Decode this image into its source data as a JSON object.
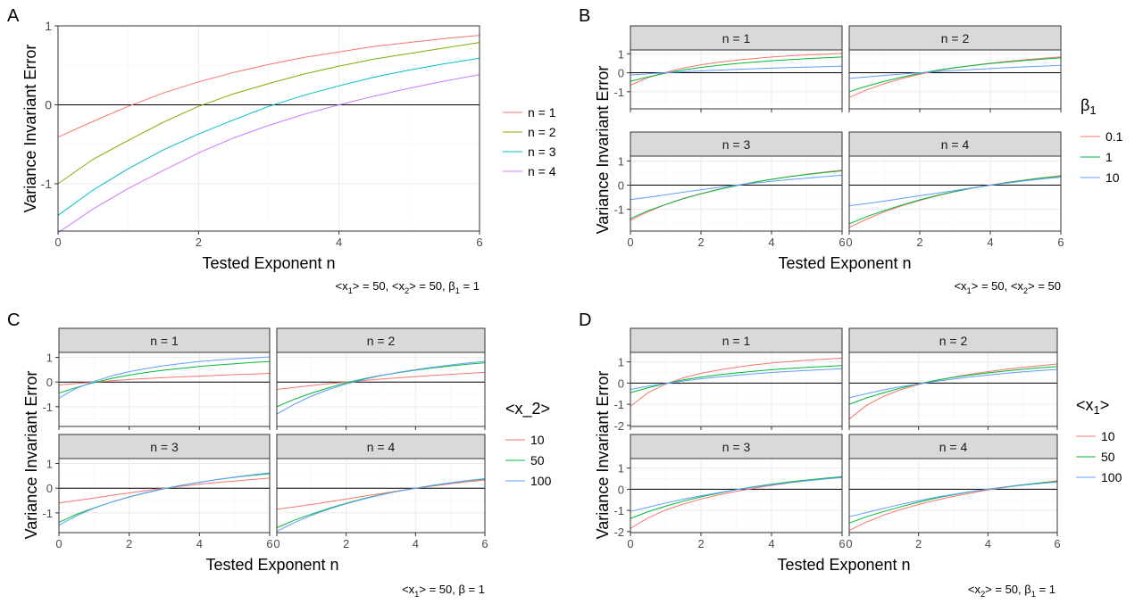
{
  "colors": {
    "series4": [
      "#F8766D",
      "#7CAE00",
      "#00BFC4",
      "#C77CFF"
    ],
    "series3": [
      "#F8766D",
      "#00BA38",
      "#619CFF"
    ]
  },
  "panels": {
    "A": {
      "letter": "A",
      "xlabel": "Tested Exponent n",
      "ylabel": "Variance Invariant Error",
      "legend_title": "",
      "legend": [
        "n = 1",
        "n = 2",
        "n = 3",
        "n = 4"
      ],
      "caption": [
        "<x",
        "1",
        "> = 50, <x",
        "2",
        "> = 50, β",
        "1",
        " = 1"
      ]
    },
    "B": {
      "letter": "B",
      "xlabel": "Tested Exponent n",
      "ylabel": "Variance Invariant Error",
      "legend_title": [
        "β",
        "1"
      ],
      "legend": [
        "0.1",
        "1",
        "10"
      ],
      "caption": [
        "<x",
        "1",
        "> = 50, <x",
        "2",
        "> = 50"
      ]
    },
    "C": {
      "letter": "C",
      "xlabel": "Tested Exponent n",
      "ylabel": "Variance Invariant Error",
      "legend_title": "<x_2>",
      "legend": [
        "10",
        "50",
        "100"
      ],
      "caption": [
        "<x",
        "1",
        "> = 50, β = 1"
      ]
    },
    "D": {
      "letter": "D",
      "xlabel": "Tested Exponent n",
      "ylabel": "Variance Invariant Error",
      "legend_title": [
        "<x",
        "1",
        ">"
      ],
      "legend": [
        "10",
        "50",
        "100"
      ],
      "caption": [
        "<x",
        "2",
        "> = 50, β",
        "1",
        " = 1"
      ]
    }
  },
  "chart_data": [
    {
      "id": "A",
      "type": "line",
      "xlabel": "Tested Exponent n",
      "ylabel": "Variance Invariant Error",
      "xlim": [
        0,
        6
      ],
      "ylim": [
        -1.6,
        1.0
      ],
      "xticks": [
        0,
        2,
        4,
        6
      ],
      "yticks": [
        -1,
        0,
        1
      ],
      "x": [
        0,
        0.5,
        1,
        1.5,
        2,
        2.5,
        3,
        3.5,
        4,
        4.5,
        5,
        5.5,
        6
      ],
      "series": [
        {
          "name": "n = 1",
          "values": [
            -0.41,
            -0.21,
            -0.02,
            0.15,
            0.29,
            0.41,
            0.51,
            0.6,
            0.67,
            0.74,
            0.79,
            0.84,
            0.88
          ]
        },
        {
          "name": "n = 2",
          "values": [
            -1.0,
            -0.69,
            -0.45,
            -0.22,
            -0.02,
            0.14,
            0.27,
            0.39,
            0.49,
            0.58,
            0.65,
            0.72,
            0.79
          ]
        },
        {
          "name": "n = 3",
          "values": [
            -1.4,
            -1.08,
            -0.81,
            -0.57,
            -0.37,
            -0.19,
            -0.02,
            0.12,
            0.24,
            0.35,
            0.44,
            0.52,
            0.59
          ]
        },
        {
          "name": "n = 4",
          "values": [
            -1.62,
            -1.32,
            -1.06,
            -0.83,
            -0.61,
            -0.42,
            -0.26,
            -0.12,
            0.0,
            0.11,
            0.21,
            0.3,
            0.38
          ]
        }
      ]
    },
    {
      "id": "B",
      "type": "line",
      "xlabel": "Tested Exponent n",
      "ylabel": "Variance Invariant Error",
      "legend_title": "β1",
      "xlim": [
        0,
        6
      ],
      "ylim": [
        -1.9,
        1.2
      ],
      "xticks": [
        0,
        2,
        4,
        6
      ],
      "yticks": [
        -1,
        0,
        1
      ],
      "facets": [
        "n = 1",
        "n = 2",
        "n = 3",
        "n = 4"
      ],
      "x": [
        0,
        0.5,
        1,
        1.5,
        2,
        2.5,
        3,
        3.5,
        4,
        4.5,
        5,
        5.5,
        6
      ],
      "series": [
        {
          "name": "0.1",
          "values": [
            [
              -0.65,
              -0.25,
              0.02,
              0.25,
              0.42,
              0.55,
              0.66,
              0.75,
              0.83,
              0.89,
              0.94,
              0.98,
              1.02
            ],
            [
              -1.3,
              -0.9,
              -0.57,
              -0.3,
              -0.08,
              0.1,
              0.26,
              0.39,
              0.5,
              0.6,
              0.69,
              0.77,
              0.84
            ],
            [
              -1.45,
              -1.1,
              -0.8,
              -0.55,
              -0.35,
              -0.17,
              -0.02,
              0.12,
              0.24,
              0.35,
              0.45,
              0.54,
              0.62
            ],
            [
              -1.75,
              -1.4,
              -1.1,
              -0.85,
              -0.63,
              -0.44,
              -0.27,
              -0.12,
              0.0,
              0.12,
              0.22,
              0.31,
              0.39
            ]
          ]
        },
        {
          "name": "1",
          "values": [
            [
              -0.45,
              -0.22,
              -0.02,
              0.15,
              0.28,
              0.39,
              0.48,
              0.56,
              0.63,
              0.69,
              0.74,
              0.79,
              0.83
            ],
            [
              -1.0,
              -0.7,
              -0.45,
              -0.23,
              -0.03,
              0.13,
              0.27,
              0.38,
              0.48,
              0.57,
              0.65,
              0.72,
              0.78
            ],
            [
              -1.38,
              -1.06,
              -0.8,
              -0.56,
              -0.36,
              -0.18,
              -0.02,
              0.12,
              0.24,
              0.35,
              0.44,
              0.52,
              0.59
            ],
            [
              -1.6,
              -1.3,
              -1.05,
              -0.82,
              -0.61,
              -0.42,
              -0.26,
              -0.12,
              0.0,
              0.11,
              0.21,
              0.3,
              0.37
            ]
          ]
        },
        {
          "name": "10",
          "values": [
            [
              -0.12,
              -0.06,
              0.0,
              0.05,
              0.1,
              0.14,
              0.18,
              0.21,
              0.24,
              0.27,
              0.3,
              0.32,
              0.35
            ],
            [
              -0.3,
              -0.22,
              -0.14,
              -0.07,
              0.0,
              0.06,
              0.12,
              0.17,
              0.22,
              0.27,
              0.31,
              0.35,
              0.39
            ],
            [
              -0.6,
              -0.5,
              -0.4,
              -0.29,
              -0.19,
              -0.09,
              0.0,
              0.08,
              0.16,
              0.23,
              0.29,
              0.35,
              0.41
            ],
            [
              -0.85,
              -0.76,
              -0.66,
              -0.55,
              -0.44,
              -0.33,
              -0.22,
              -0.11,
              0.0,
              0.09,
              0.18,
              0.26,
              0.33
            ]
          ]
        }
      ]
    },
    {
      "id": "C",
      "type": "line",
      "xlabel": "Tested Exponent n",
      "ylabel": "Variance Invariant Error",
      "legend_title": "<x_2>",
      "xlim": [
        0,
        6
      ],
      "ylim": [
        -1.8,
        1.2
      ],
      "xticks": [
        0,
        2,
        4,
        6
      ],
      "yticks": [
        -1,
        0,
        1
      ],
      "facets": [
        "n = 1",
        "n = 2",
        "n = 3",
        "n = 4"
      ],
      "x": [
        0,
        0.5,
        1,
        1.5,
        2,
        2.5,
        3,
        3.5,
        4,
        4.5,
        5,
        5.5,
        6
      ],
      "series": [
        {
          "name": "10",
          "values": [
            [
              -0.12,
              -0.06,
              0.0,
              0.05,
              0.1,
              0.14,
              0.18,
              0.21,
              0.24,
              0.27,
              0.3,
              0.32,
              0.35
            ],
            [
              -0.3,
              -0.22,
              -0.14,
              -0.07,
              0.0,
              0.06,
              0.12,
              0.17,
              0.22,
              0.27,
              0.31,
              0.35,
              0.39
            ],
            [
              -0.6,
              -0.5,
              -0.4,
              -0.29,
              -0.19,
              -0.09,
              0.0,
              0.08,
              0.16,
              0.23,
              0.29,
              0.35,
              0.41
            ],
            [
              -0.85,
              -0.76,
              -0.66,
              -0.55,
              -0.44,
              -0.33,
              -0.22,
              -0.11,
              0.0,
              0.09,
              0.18,
              0.26,
              0.33
            ]
          ]
        },
        {
          "name": "50",
          "values": [
            [
              -0.45,
              -0.22,
              -0.02,
              0.15,
              0.28,
              0.39,
              0.48,
              0.56,
              0.63,
              0.69,
              0.74,
              0.79,
              0.83
            ],
            [
              -1.0,
              -0.7,
              -0.45,
              -0.23,
              -0.03,
              0.13,
              0.27,
              0.38,
              0.48,
              0.57,
              0.65,
              0.72,
              0.78
            ],
            [
              -1.38,
              -1.06,
              -0.8,
              -0.56,
              -0.36,
              -0.18,
              -0.02,
              0.12,
              0.24,
              0.35,
              0.44,
              0.52,
              0.59
            ],
            [
              -1.6,
              -1.3,
              -1.05,
              -0.82,
              -0.61,
              -0.42,
              -0.26,
              -0.12,
              0.0,
              0.11,
              0.21,
              0.3,
              0.37
            ]
          ]
        },
        {
          "name": "100",
          "values": [
            [
              -0.65,
              -0.25,
              0.02,
              0.25,
              0.42,
              0.55,
              0.66,
              0.75,
              0.83,
              0.89,
              0.94,
              0.98,
              1.02
            ],
            [
              -1.3,
              -0.9,
              -0.57,
              -0.3,
              -0.08,
              0.1,
              0.26,
              0.39,
              0.5,
              0.6,
              0.69,
              0.77,
              0.84
            ],
            [
              -1.5,
              -1.12,
              -0.81,
              -0.56,
              -0.35,
              -0.17,
              -0.02,
              0.12,
              0.24,
              0.35,
              0.45,
              0.54,
              0.62
            ],
            [
              -1.75,
              -1.4,
              -1.1,
              -0.85,
              -0.63,
              -0.44,
              -0.27,
              -0.12,
              0.0,
              0.12,
              0.22,
              0.31,
              0.39
            ]
          ]
        }
      ]
    },
    {
      "id": "D",
      "type": "line",
      "xlabel": "Tested Exponent n",
      "ylabel": "Variance Invariant Error",
      "legend_title": "<x1>",
      "xlim": [
        0,
        6
      ],
      "ylim": [
        -2.05,
        1.45
      ],
      "xticks": [
        0,
        2,
        4,
        6
      ],
      "yticks": [
        -2,
        -1,
        0,
        1
      ],
      "facets": [
        "n = 1",
        "n = 2",
        "n = 3",
        "n = 4"
      ],
      "x": [
        0,
        0.5,
        1,
        1.5,
        2,
        2.5,
        3,
        3.5,
        4,
        4.5,
        5,
        5.5,
        6
      ],
      "series": [
        {
          "name": "10",
          "values": [
            [
              -1.1,
              -0.45,
              -0.05,
              0.25,
              0.46,
              0.62,
              0.75,
              0.86,
              0.95,
              1.02,
              1.08,
              1.13,
              1.18
            ],
            [
              -1.7,
              -1.05,
              -0.62,
              -0.3,
              -0.07,
              0.12,
              0.28,
              0.42,
              0.54,
              0.65,
              0.74,
              0.82,
              0.9
            ],
            [
              -1.85,
              -1.35,
              -0.98,
              -0.7,
              -0.46,
              -0.26,
              -0.1,
              0.05,
              0.18,
              0.3,
              0.41,
              0.51,
              0.6
            ],
            [
              -1.95,
              -1.55,
              -1.22,
              -0.95,
              -0.72,
              -0.52,
              -0.34,
              -0.18,
              -0.04,
              0.09,
              0.2,
              0.3,
              0.4
            ]
          ]
        },
        {
          "name": "50",
          "values": [
            [
              -0.45,
              -0.22,
              -0.02,
              0.15,
              0.28,
              0.39,
              0.48,
              0.56,
              0.63,
              0.69,
              0.74,
              0.79,
              0.83
            ],
            [
              -1.0,
              -0.7,
              -0.45,
              -0.23,
              -0.03,
              0.13,
              0.27,
              0.38,
              0.48,
              0.57,
              0.65,
              0.72,
              0.78
            ],
            [
              -1.38,
              -1.06,
              -0.8,
              -0.56,
              -0.36,
              -0.18,
              -0.02,
              0.12,
              0.24,
              0.35,
              0.44,
              0.52,
              0.59
            ],
            [
              -1.6,
              -1.3,
              -1.05,
              -0.82,
              -0.61,
              -0.42,
              -0.26,
              -0.12,
              0.0,
              0.11,
              0.21,
              0.3,
              0.37
            ]
          ]
        },
        {
          "name": "100",
          "values": [
            [
              -0.3,
              -0.15,
              -0.02,
              0.1,
              0.2,
              0.29,
              0.37,
              0.44,
              0.5,
              0.55,
              0.6,
              0.64,
              0.68
            ],
            [
              -0.7,
              -0.5,
              -0.32,
              -0.17,
              -0.04,
              0.08,
              0.19,
              0.29,
              0.38,
              0.46,
              0.53,
              0.59,
              0.65
            ],
            [
              -1.05,
              -0.85,
              -0.65,
              -0.47,
              -0.31,
              -0.16,
              -0.02,
              0.1,
              0.21,
              0.31,
              0.4,
              0.48,
              0.55
            ],
            [
              -1.3,
              -1.1,
              -0.9,
              -0.71,
              -0.54,
              -0.38,
              -0.24,
              -0.11,
              0.0,
              0.1,
              0.19,
              0.27,
              0.34
            ]
          ]
        }
      ]
    }
  ]
}
